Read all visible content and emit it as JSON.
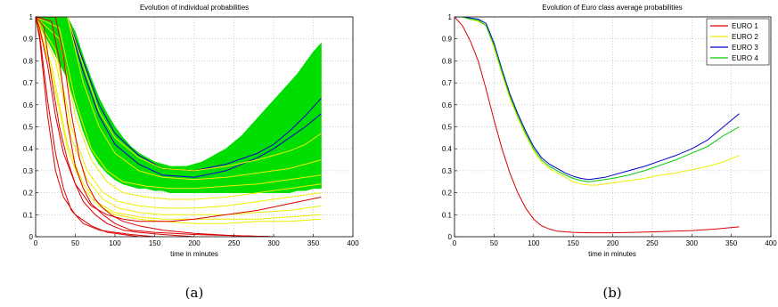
{
  "chart_data": [
    {
      "type": "line",
      "title": "Evolution of individual probabilities",
      "xlabel": "time in minutes",
      "ylabel": "",
      "caption": "(a)",
      "xlim": [
        0,
        400
      ],
      "ylim": [
        0,
        1
      ],
      "xticks": [
        "0",
        "50",
        "100",
        "150",
        "200",
        "250",
        "300",
        "350",
        "400"
      ],
      "yticks": [
        "0",
        "0.1",
        "0.2",
        "0.3",
        "0.4",
        "0.5",
        "0.6",
        "0.7",
        "0.8",
        "0.9",
        "1"
      ],
      "grid": true,
      "band": {
        "color": "#00dd00",
        "x": [
          0,
          10,
          20,
          30,
          40,
          50,
          60,
          70,
          80,
          90,
          100,
          110,
          120,
          130,
          140,
          150,
          160,
          170,
          180,
          190,
          200,
          210,
          220,
          230,
          240,
          250,
          260,
          270,
          280,
          290,
          300,
          310,
          320,
          330,
          340,
          350,
          360
        ],
        "upper": [
          1.0,
          1.0,
          1.0,
          1.0,
          1.0,
          0.93,
          0.82,
          0.72,
          0.63,
          0.56,
          0.5,
          0.45,
          0.41,
          0.38,
          0.36,
          0.34,
          0.33,
          0.32,
          0.32,
          0.32,
          0.33,
          0.34,
          0.36,
          0.38,
          0.4,
          0.43,
          0.46,
          0.5,
          0.54,
          0.58,
          0.62,
          0.66,
          0.7,
          0.74,
          0.79,
          0.84,
          0.88
        ],
        "lower": [
          1.0,
          0.93,
          0.86,
          0.79,
          0.72,
          0.6,
          0.48,
          0.39,
          0.33,
          0.29,
          0.26,
          0.24,
          0.23,
          0.22,
          0.22,
          0.21,
          0.21,
          0.2,
          0.2,
          0.2,
          0.2,
          0.2,
          0.2,
          0.2,
          0.2,
          0.2,
          0.2,
          0.2,
          0.2,
          0.2,
          0.2,
          0.2,
          0.2,
          0.21,
          0.21,
          0.22,
          0.22
        ]
      },
      "series": [
        {
          "color": "#0000cc",
          "x": [
            0,
            40,
            60,
            80,
            100,
            130,
            160,
            200,
            240,
            280,
            300,
            320,
            340,
            360
          ],
          "y": [
            1.0,
            1.0,
            0.8,
            0.6,
            0.47,
            0.37,
            0.31,
            0.3,
            0.33,
            0.38,
            0.42,
            0.48,
            0.55,
            0.63
          ]
        },
        {
          "color": "#0000cc",
          "x": [
            0,
            40,
            60,
            80,
            100,
            130,
            160,
            200,
            240,
            280,
            300,
            320,
            340,
            360
          ],
          "y": [
            1.0,
            1.0,
            0.75,
            0.55,
            0.42,
            0.33,
            0.28,
            0.27,
            0.3,
            0.36,
            0.4,
            0.45,
            0.5,
            0.56
          ]
        },
        {
          "color": "#eeee00",
          "x": [
            0,
            40,
            60,
            80,
            100,
            130,
            160,
            200,
            240,
            280,
            300,
            320,
            340,
            360
          ],
          "y": [
            1.0,
            1.0,
            0.78,
            0.57,
            0.45,
            0.36,
            0.31,
            0.3,
            0.32,
            0.35,
            0.37,
            0.39,
            0.42,
            0.47
          ]
        },
        {
          "color": "#eeee00",
          "x": [
            0,
            40,
            60,
            80,
            100,
            130,
            160,
            200,
            240,
            280,
            300,
            320,
            340,
            360
          ],
          "y": [
            1.0,
            1.0,
            0.7,
            0.5,
            0.38,
            0.3,
            0.27,
            0.26,
            0.27,
            0.29,
            0.3,
            0.31,
            0.33,
            0.35
          ]
        },
        {
          "color": "#eeee00",
          "x": [
            0,
            30,
            50,
            70,
            90,
            110,
            140,
            170,
            200,
            240,
            280,
            320,
            360
          ],
          "y": [
            1.0,
            0.95,
            0.62,
            0.4,
            0.3,
            0.25,
            0.23,
            0.22,
            0.22,
            0.23,
            0.24,
            0.26,
            0.28
          ]
        },
        {
          "color": "#eeee00",
          "x": [
            0,
            30,
            50,
            70,
            90,
            110,
            140,
            170,
            200,
            240,
            280,
            320,
            360
          ],
          "y": [
            1.0,
            0.9,
            0.55,
            0.35,
            0.25,
            0.2,
            0.18,
            0.17,
            0.17,
            0.18,
            0.2,
            0.22,
            0.24
          ]
        },
        {
          "color": "#eeee00",
          "x": [
            0,
            25,
            45,
            65,
            85,
            105,
            130,
            160,
            200,
            240,
            280,
            320,
            360
          ],
          "y": [
            1.0,
            0.85,
            0.5,
            0.3,
            0.2,
            0.16,
            0.14,
            0.13,
            0.13,
            0.14,
            0.16,
            0.18,
            0.2
          ]
        },
        {
          "color": "#eeee00",
          "x": [
            0,
            25,
            45,
            65,
            85,
            105,
            130,
            160,
            200,
            240,
            280,
            320,
            360
          ],
          "y": [
            1.0,
            0.8,
            0.45,
            0.26,
            0.17,
            0.13,
            0.11,
            0.1,
            0.1,
            0.1,
            0.11,
            0.12,
            0.14
          ]
        },
        {
          "color": "#eeee00",
          "x": [
            0,
            20,
            40,
            60,
            80,
            100,
            130,
            160,
            200,
            240,
            280,
            320,
            360
          ],
          "y": [
            1.0,
            0.78,
            0.42,
            0.24,
            0.15,
            0.11,
            0.09,
            0.08,
            0.08,
            0.08,
            0.08,
            0.09,
            0.1
          ]
        },
        {
          "color": "#eeee00",
          "x": [
            0,
            20,
            40,
            60,
            80,
            100,
            130,
            160,
            200,
            240,
            280,
            320,
            360
          ],
          "y": [
            1.0,
            0.75,
            0.4,
            0.22,
            0.14,
            0.1,
            0.08,
            0.07,
            0.06,
            0.06,
            0.07,
            0.07,
            0.08
          ]
        },
        {
          "color": "#dd0000",
          "x": [
            0,
            5,
            15,
            25,
            35,
            50,
            70,
            90,
            110,
            130,
            150,
            170,
            200,
            240,
            280,
            320,
            360
          ],
          "y": [
            1.0,
            0.95,
            0.78,
            0.55,
            0.38,
            0.24,
            0.14,
            0.1,
            0.08,
            0.07,
            0.07,
            0.07,
            0.08,
            0.1,
            0.12,
            0.15,
            0.18
          ]
        },
        {
          "color": "#dd0000",
          "x": [
            0,
            5,
            15,
            25,
            35,
            45,
            60,
            80,
            100,
            120,
            150
          ],
          "y": [
            1.0,
            0.92,
            0.62,
            0.38,
            0.22,
            0.12,
            0.06,
            0.03,
            0.02,
            0.01,
            0.0
          ]
        },
        {
          "color": "#dd0000",
          "x": [
            0,
            5,
            15,
            25,
            35,
            50,
            70,
            90,
            110,
            130,
            160
          ],
          "y": [
            1.0,
            0.9,
            0.55,
            0.3,
            0.18,
            0.1,
            0.05,
            0.02,
            0.01,
            0.0,
            0.0
          ]
        },
        {
          "color": "#dd0000",
          "x": [
            0,
            20,
            30,
            40,
            50,
            60,
            70,
            85,
            100,
            120,
            150,
            200,
            250,
            300
          ],
          "y": [
            1.0,
            0.98,
            0.8,
            0.52,
            0.32,
            0.22,
            0.15,
            0.1,
            0.06,
            0.03,
            0.02,
            0.01,
            0.005,
            0.0
          ]
        },
        {
          "color": "#dd0000",
          "x": [
            0,
            25,
            35,
            45,
            55,
            65,
            75,
            85,
            95,
            110,
            130,
            160,
            200,
            250,
            300
          ],
          "y": [
            1.0,
            1.0,
            0.82,
            0.56,
            0.36,
            0.24,
            0.17,
            0.13,
            0.1,
            0.07,
            0.05,
            0.03,
            0.015,
            0.005,
            0.0
          ]
        },
        {
          "color": "#dd0000",
          "x": [
            0,
            10,
            20,
            30,
            40,
            50,
            60,
            75,
            90,
            110,
            130,
            160,
            200
          ],
          "y": [
            1.0,
            0.96,
            0.72,
            0.5,
            0.35,
            0.24,
            0.16,
            0.1,
            0.06,
            0.03,
            0.02,
            0.01,
            0.0
          ]
        }
      ]
    },
    {
      "type": "line",
      "title": "Evolution of Euro class average probabilities",
      "xlabel": "time in minutes",
      "ylabel": "",
      "caption": "(b)",
      "xlim": [
        0,
        400
      ],
      "ylim": [
        0,
        1
      ],
      "xticks": [
        "0",
        "50",
        "100",
        "150",
        "200",
        "250",
        "300",
        "350",
        "400"
      ],
      "yticks": [
        "0",
        "0.1",
        "0.2",
        "0.3",
        "0.4",
        "0.5",
        "0.6",
        "0.7",
        "0.8",
        "0.9",
        "1"
      ],
      "grid": true,
      "legend": "top-right",
      "series": [
        {
          "name": "EURO 1",
          "color": "#dd0000",
          "x": [
            0,
            10,
            20,
            30,
            40,
            50,
            60,
            70,
            80,
            90,
            100,
            110,
            120,
            130,
            150,
            170,
            200,
            250,
            300,
            330,
            360
          ],
          "y": [
            1.0,
            0.96,
            0.89,
            0.8,
            0.67,
            0.53,
            0.4,
            0.29,
            0.2,
            0.13,
            0.08,
            0.05,
            0.035,
            0.025,
            0.02,
            0.018,
            0.018,
            0.022,
            0.028,
            0.035,
            0.045
          ]
        },
        {
          "name": "EURO 2",
          "color": "#eeee00",
          "x": [
            0,
            10,
            20,
            30,
            40,
            50,
            60,
            70,
            80,
            90,
            100,
            110,
            120,
            130,
            140,
            150,
            160,
            170,
            180,
            190,
            200,
            220,
            240,
            260,
            280,
            300,
            320,
            340,
            360
          ],
          "y": [
            1.0,
            1.0,
            0.99,
            0.98,
            0.96,
            0.86,
            0.74,
            0.63,
            0.54,
            0.46,
            0.39,
            0.34,
            0.31,
            0.29,
            0.27,
            0.25,
            0.24,
            0.235,
            0.235,
            0.24,
            0.245,
            0.255,
            0.265,
            0.28,
            0.29,
            0.305,
            0.32,
            0.34,
            0.37
          ]
        },
        {
          "name": "EURO 3",
          "color": "#0000cc",
          "x": [
            0,
            10,
            20,
            30,
            40,
            50,
            60,
            70,
            80,
            90,
            100,
            110,
            120,
            130,
            140,
            150,
            160,
            170,
            180,
            190,
            200,
            220,
            240,
            260,
            280,
            300,
            320,
            340,
            360
          ],
          "y": [
            1.0,
            1.0,
            0.995,
            0.99,
            0.97,
            0.88,
            0.76,
            0.65,
            0.56,
            0.48,
            0.41,
            0.36,
            0.33,
            0.31,
            0.29,
            0.275,
            0.265,
            0.26,
            0.265,
            0.27,
            0.28,
            0.3,
            0.32,
            0.345,
            0.37,
            0.4,
            0.44,
            0.5,
            0.56
          ]
        },
        {
          "name": "EURO 4",
          "color": "#00cc00",
          "x": [
            0,
            10,
            20,
            30,
            40,
            50,
            60,
            70,
            80,
            90,
            100,
            110,
            120,
            130,
            140,
            150,
            160,
            170,
            180,
            190,
            200,
            220,
            240,
            260,
            280,
            300,
            320,
            340,
            360
          ],
          "y": [
            1.0,
            1.0,
            0.99,
            0.985,
            0.96,
            0.87,
            0.75,
            0.64,
            0.55,
            0.47,
            0.4,
            0.35,
            0.32,
            0.3,
            0.28,
            0.265,
            0.255,
            0.25,
            0.255,
            0.26,
            0.265,
            0.28,
            0.3,
            0.325,
            0.35,
            0.38,
            0.41,
            0.46,
            0.5
          ]
        }
      ]
    }
  ]
}
